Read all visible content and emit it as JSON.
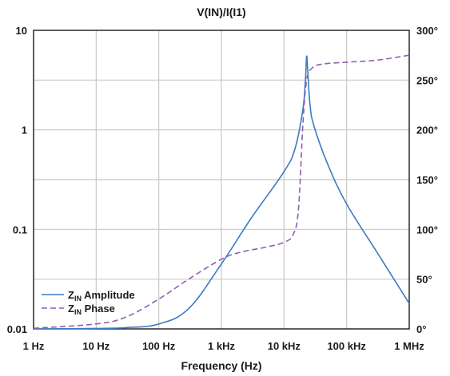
{
  "chart_data": {
    "type": "line",
    "title": "V(IN)/I(I1)",
    "xlabel": "Frequency (Hz)",
    "ylabel": "",
    "y2label": "",
    "x_scale": "log",
    "y_scale": "log",
    "xlim": [
      1,
      1000000
    ],
    "ylim": [
      0.01,
      10
    ],
    "y2lim": [
      0,
      300
    ],
    "grid": true,
    "legend_position": "bottom-left",
    "x_tick_labels": [
      "1 Hz",
      "10 Hz",
      "100 Hz",
      "1 kHz",
      "10 kHz",
      "100 kHz",
      "1 MHz"
    ],
    "x_tick_values": [
      1,
      10,
      100,
      1000,
      10000,
      100000,
      1000000
    ],
    "y_tick_labels": [
      "0.01",
      "0.1",
      "1",
      "10"
    ],
    "y_tick_values": [
      0.01,
      0.1,
      1,
      10
    ],
    "y2_tick_labels": [
      "0°",
      "50°",
      "100°",
      "150°",
      "200°",
      "250°",
      "300°"
    ],
    "y2_tick_values": [
      0,
      50,
      100,
      150,
      200,
      250,
      300
    ],
    "series": [
      {
        "name_main": "Z",
        "name_sub": "IN",
        "name_rest": " Amplitude",
        "axis": "left",
        "color": "#3a7bbf",
        "dash": "solid",
        "x": [
          1,
          10,
          30,
          100,
          300,
          1000,
          3000,
          10000,
          15000,
          20000,
          22000,
          23000,
          24000,
          26000,
          30000,
          50000,
          100000,
          300000,
          1000000
        ],
        "y": [
          0.01,
          0.0101,
          0.0103,
          0.0112,
          0.016,
          0.045,
          0.13,
          0.38,
          0.65,
          1.6,
          3.2,
          5.5,
          3.8,
          1.8,
          1.1,
          0.45,
          0.18,
          0.06,
          0.018
        ]
      },
      {
        "name_main": "Z",
        "name_sub": "IN",
        "name_rest": " Phase",
        "axis": "right",
        "color": "#8e5fb0",
        "dash": "dashed",
        "x": [
          1,
          10,
          30,
          100,
          300,
          1000,
          2000,
          5000,
          10000,
          14000,
          17000,
          20000,
          23000,
          28000,
          40000,
          100000,
          300000,
          1000000
        ],
        "y": [
          0.6,
          5,
          12,
          30,
          50,
          70,
          77,
          82,
          87,
          95,
          120,
          205,
          250,
          262,
          266,
          268,
          270,
          275
        ]
      }
    ]
  }
}
